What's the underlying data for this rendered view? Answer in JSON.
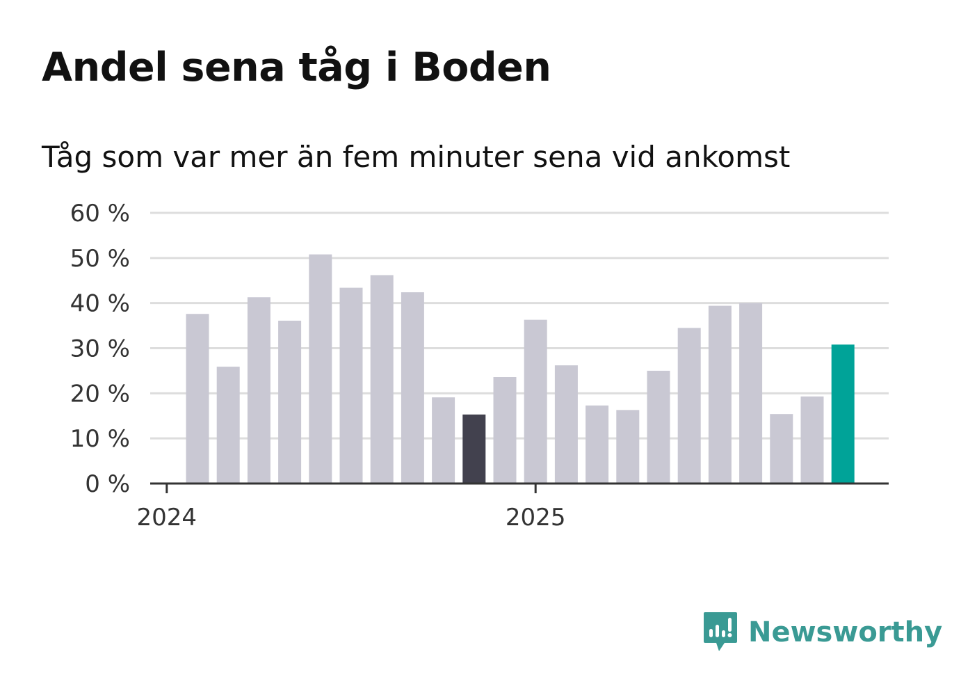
{
  "header": {
    "title": "Andel sena tåg i Boden",
    "subtitle": "Tåg som var mer än fem minuter sena vid ankomst"
  },
  "brand": {
    "name": "Newsworthy",
    "icon": "bar-chart-speech-bubble-icon",
    "color": "#3a9a94"
  },
  "colors": {
    "default_bar": "#c9c8d3",
    "highlight_previous": "#42414e",
    "highlight_latest": "#00a398",
    "gridline": "#dddddd",
    "axis": "#333333"
  },
  "chart_data": {
    "type": "bar",
    "title": "Andel sena tåg i Boden",
    "subtitle": "Tåg som var mer än fem minuter sena vid ankomst",
    "xlabel": "",
    "ylabel": "",
    "unit": "%",
    "ylim": [
      0,
      60
    ],
    "yticks": [
      0,
      10,
      20,
      30,
      40,
      50,
      60
    ],
    "ytick_labels": [
      "0 %",
      "10 %",
      "20 %",
      "30 %",
      "40 %",
      "50 %",
      "60 %"
    ],
    "grid": true,
    "legend": "none",
    "x_start_label": "2024",
    "x_tick_labels": [
      {
        "label": "2024",
        "position_months": 0
      },
      {
        "label": "2025",
        "position_months": 12
      }
    ],
    "categories": [
      "2024-01",
      "2024-02",
      "2024-03",
      "2024-04",
      "2024-05",
      "2024-06",
      "2024-07",
      "2024-08",
      "2024-09",
      "2024-10",
      "2024-11",
      "2024-12",
      "2025-01",
      "2025-02",
      "2025-03",
      "2025-04",
      "2025-05",
      "2025-06",
      "2025-07",
      "2025-08",
      "2025-09",
      "2025-10"
    ],
    "values": [
      37.6,
      25.9,
      41.3,
      36.1,
      50.8,
      43.4,
      46.2,
      42.4,
      19.1,
      15.3,
      23.6,
      36.3,
      26.2,
      17.3,
      16.3,
      25.0,
      34.5,
      39.4,
      40.0,
      15.4,
      19.3,
      30.8
    ],
    "bar_colors": [
      "default",
      "default",
      "default",
      "default",
      "default",
      "default",
      "default",
      "default",
      "default",
      "highlight_previous",
      "default",
      "default",
      "default",
      "default",
      "default",
      "default",
      "default",
      "default",
      "default",
      "default",
      "default",
      "highlight_latest"
    ]
  }
}
